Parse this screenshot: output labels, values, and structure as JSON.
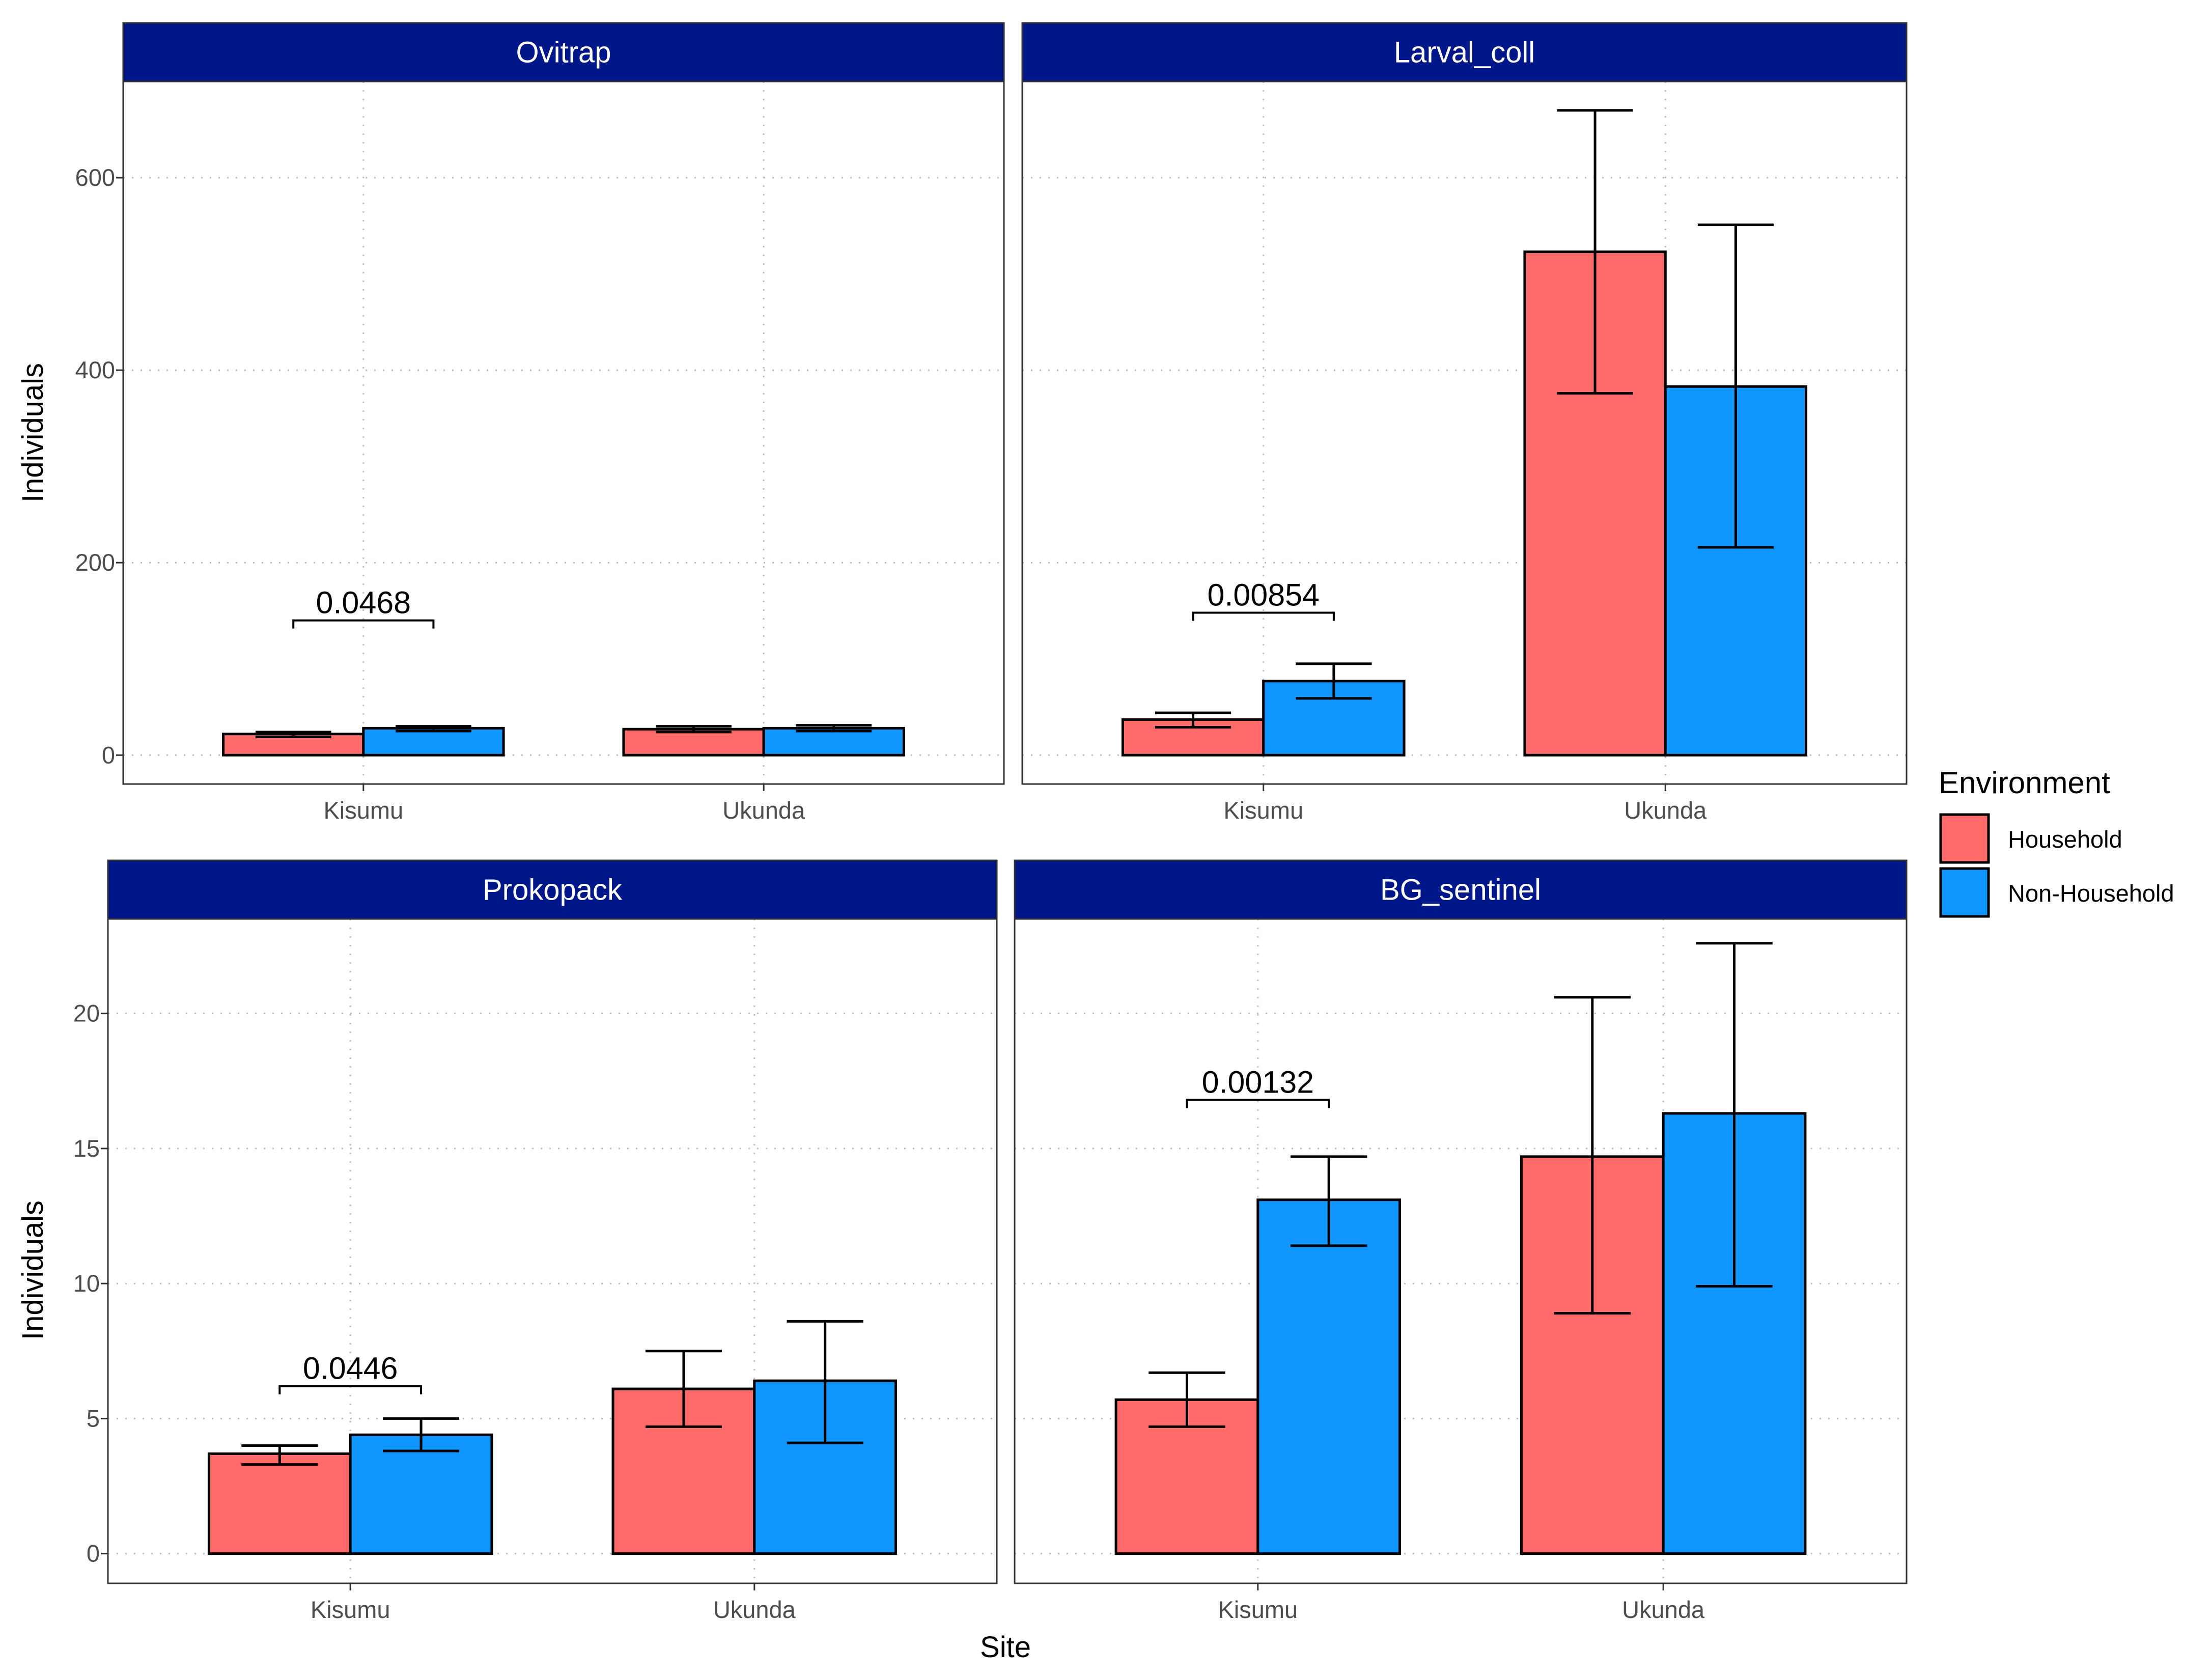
{
  "colors": {
    "strip_bg": "#00178A",
    "household": "#FF6B6B",
    "non_household": "#1096FF",
    "grid": "#BEBEBE",
    "border": "#333333"
  },
  "y_axis_label": "Individuals",
  "x_axis_label": "Site",
  "legend": {
    "title": "Environment",
    "placement": "right",
    "entries": [
      {
        "label": "Household",
        "color": "#FF6B6B"
      },
      {
        "label": "Non-Household",
        "color": "#1096FF"
      }
    ]
  },
  "chart_data": [
    {
      "type": "bar",
      "title": "Ovitrap",
      "categories": [
        "Kisumu",
        "Ukunda"
      ],
      "ylim": [
        -30,
        700
      ],
      "yticks": [
        0,
        200,
        400,
        600
      ],
      "series": [
        {
          "name": "Household",
          "values": [
            22,
            27
          ],
          "err_low": [
            19,
            24
          ],
          "err_high": [
            24,
            30
          ]
        },
        {
          "name": "Non-Household",
          "values": [
            28,
            28
          ],
          "err_low": [
            25,
            25
          ],
          "err_high": [
            30,
            31
          ]
        }
      ],
      "annotations": [
        {
          "category": "Kisumu",
          "label": "0.0468",
          "y": 140
        }
      ]
    },
    {
      "type": "bar",
      "title": "Larval_coll",
      "categories": [
        "Kisumu",
        "Ukunda"
      ],
      "ylim": [
        -30,
        700
      ],
      "yticks": [
        0,
        200,
        400,
        600
      ],
      "series": [
        {
          "name": "Household",
          "values": [
            37,
            523
          ],
          "err_low": [
            29,
            376
          ],
          "err_high": [
            44,
            670
          ]
        },
        {
          "name": "Non-Household",
          "values": [
            77,
            383
          ],
          "err_low": [
            59,
            216
          ],
          "err_high": [
            95,
            551
          ]
        }
      ],
      "annotations": [
        {
          "category": "Kisumu",
          "label": "0.00854",
          "y": 148
        }
      ]
    },
    {
      "type": "bar",
      "title": "Prokopack",
      "categories": [
        "Kisumu",
        "Ukunda"
      ],
      "ylim": [
        -1.1,
        23.5
      ],
      "yticks": [
        0,
        5,
        10,
        15,
        20
      ],
      "series": [
        {
          "name": "Household",
          "values": [
            3.7,
            6.1
          ],
          "err_low": [
            3.3,
            4.7
          ],
          "err_high": [
            4.0,
            7.5
          ]
        },
        {
          "name": "Non-Household",
          "values": [
            4.4,
            6.4
          ],
          "err_low": [
            3.8,
            4.1
          ],
          "err_high": [
            5.0,
            8.6
          ]
        }
      ],
      "annotations": [
        {
          "category": "Kisumu",
          "label": "0.0446",
          "y": 6.2
        }
      ]
    },
    {
      "type": "bar",
      "title": "BG_sentinel",
      "categories": [
        "Kisumu",
        "Ukunda"
      ],
      "ylim": [
        -1.1,
        23.5
      ],
      "yticks": [
        0,
        5,
        10,
        15,
        20
      ],
      "series": [
        {
          "name": "Household",
          "values": [
            5.7,
            14.7
          ],
          "err_low": [
            4.7,
            8.9
          ],
          "err_high": [
            6.7,
            20.6
          ]
        },
        {
          "name": "Non-Household",
          "values": [
            13.1,
            16.3
          ],
          "err_low": [
            11.4,
            9.9
          ],
          "err_high": [
            14.7,
            22.6
          ]
        }
      ],
      "annotations": [
        {
          "category": "Kisumu",
          "label": "0.00132",
          "y": 16.8
        }
      ]
    }
  ]
}
